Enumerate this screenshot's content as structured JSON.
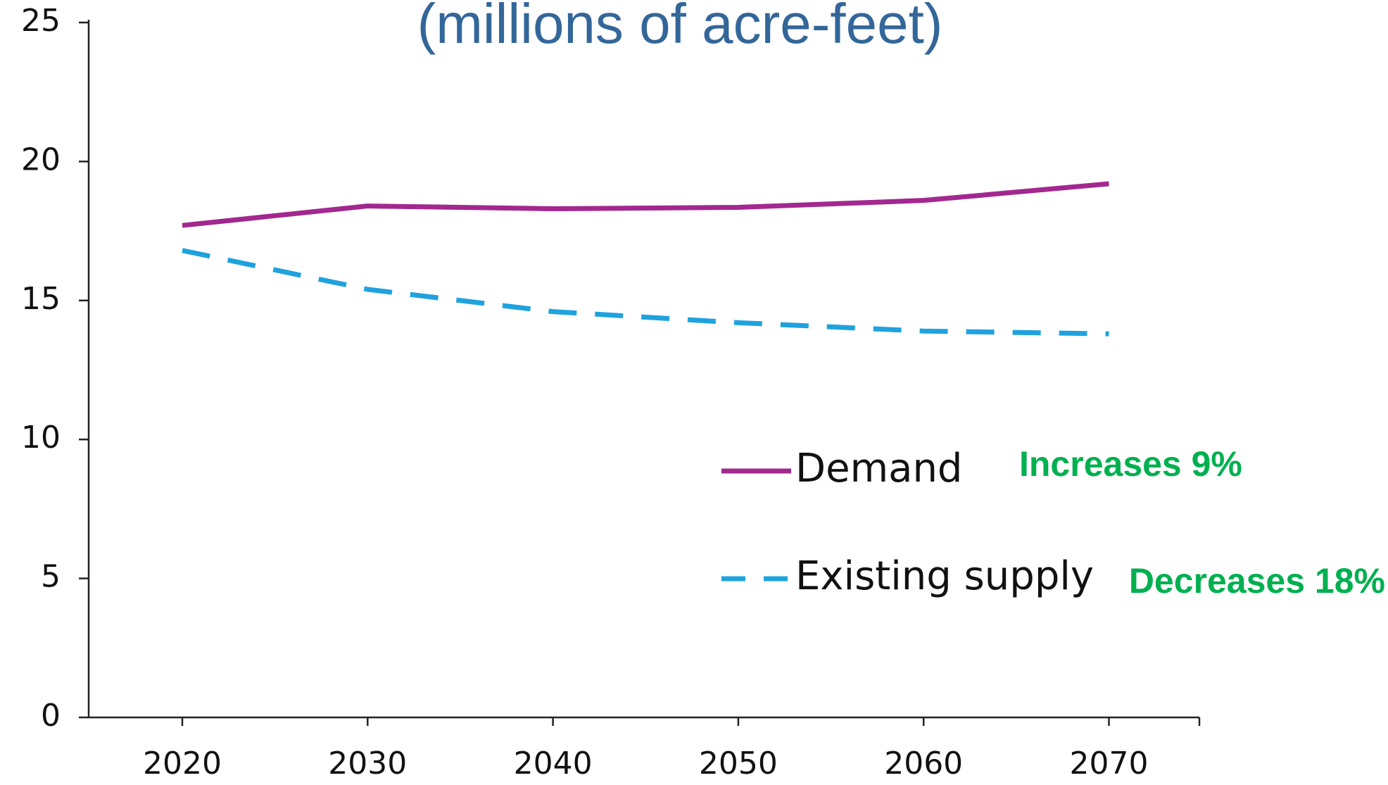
{
  "chart_data": {
    "type": "line",
    "title": "(millions of acre-feet)",
    "categories": [
      "2020",
      "2030",
      "2040",
      "2050",
      "2060",
      "2070"
    ],
    "series": [
      {
        "name": "Demand",
        "color": "#a2288f",
        "dash": false,
        "values": [
          17.7,
          18.4,
          18.3,
          18.35,
          18.6,
          19.2
        ]
      },
      {
        "name": "Existing supply",
        "color": "#1fa2de",
        "dash": true,
        "values": [
          16.8,
          15.4,
          14.6,
          14.2,
          13.9,
          13.8
        ]
      }
    ],
    "ylim": [
      0,
      25
    ],
    "yticks": [
      0,
      5,
      10,
      15,
      20,
      25
    ],
    "grid": false,
    "annotations": [
      {
        "text": "Increases 9%",
        "color": "#00b050"
      },
      {
        "text": "Decreases 18%",
        "color": "#00b050"
      }
    ]
  }
}
